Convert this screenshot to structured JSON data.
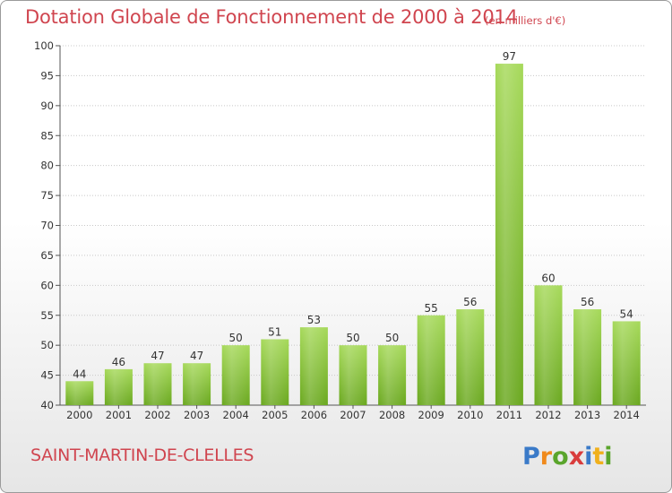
{
  "title": "Dotation Globale de Fonctionnement de 2000 à 2014",
  "subtitle": "(en milliers d'€)",
  "commune": "SAINT-MARTIN-DE-CLELLES",
  "logo": {
    "text": "Proxiti",
    "icon": "proxiti-logo"
  },
  "colors": {
    "accent": "#d0454f",
    "bar_light": "#a6d95a",
    "bar_dark": "#6aa81f"
  },
  "chart_data": {
    "type": "bar",
    "title": "Dotation Globale de Fonctionnement de 2000 à 2014",
    "subtitle": "(en milliers d'€)",
    "categories": [
      "2000",
      "2001",
      "2002",
      "2003",
      "2004",
      "2005",
      "2006",
      "2007",
      "2008",
      "2009",
      "2010",
      "2011",
      "2012",
      "2013",
      "2014"
    ],
    "values": [
      44,
      46,
      47,
      47,
      50,
      51,
      53,
      50,
      50,
      55,
      56,
      97,
      60,
      56,
      54
    ],
    "ylim": [
      40,
      100
    ],
    "yticks": [
      40,
      45,
      50,
      55,
      60,
      65,
      70,
      75,
      80,
      85,
      90,
      95,
      100
    ],
    "grid": true,
    "legend": "none"
  }
}
